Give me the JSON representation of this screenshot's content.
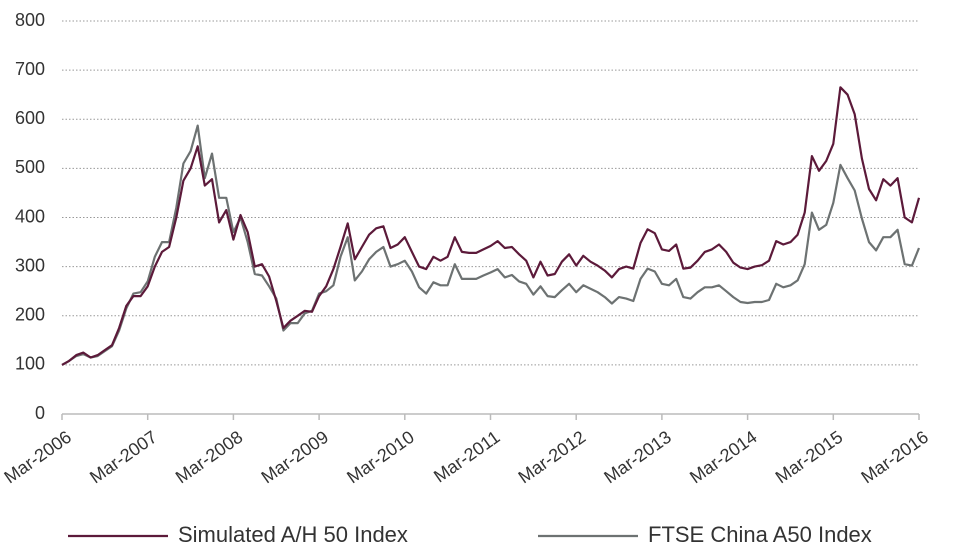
{
  "chart_data": {
    "type": "line",
    "categories": [
      "Mar-2006",
      null,
      null,
      null,
      null,
      null,
      null,
      null,
      null,
      null,
      null,
      null,
      "Mar-2007",
      null,
      null,
      null,
      null,
      null,
      null,
      null,
      null,
      null,
      null,
      null,
      "Mar-2008",
      null,
      null,
      null,
      null,
      null,
      null,
      null,
      null,
      null,
      null,
      null,
      "Mar-2009",
      null,
      null,
      null,
      null,
      null,
      null,
      null,
      null,
      null,
      null,
      null,
      "Mar-2010",
      null,
      null,
      null,
      null,
      null,
      null,
      null,
      null,
      null,
      null,
      null,
      "Mar-2011",
      null,
      null,
      null,
      null,
      null,
      null,
      null,
      null,
      null,
      null,
      null,
      "Mar-2012",
      null,
      null,
      null,
      null,
      null,
      null,
      null,
      null,
      null,
      null,
      null,
      "Mar-2013",
      null,
      null,
      null,
      null,
      null,
      null,
      null,
      null,
      null,
      null,
      null,
      "Mar-2014",
      null,
      null,
      null,
      null,
      null,
      null,
      null,
      null,
      null,
      null,
      null,
      "Mar-2015",
      null,
      null,
      null,
      null,
      null,
      null,
      null,
      null,
      null,
      null,
      null,
      "Mar-2016"
    ],
    "series": [
      {
        "name": "Simulated A/H 50 Index",
        "color": "#5c1a3a",
        "values": [
          100,
          108,
          120,
          125,
          115,
          120,
          130,
          140,
          175,
          220,
          240,
          240,
          260,
          300,
          330,
          340,
          400,
          475,
          500,
          545,
          465,
          478,
          390,
          415,
          355,
          405,
          370,
          300,
          305,
          280,
          230,
          175,
          190,
          200,
          210,
          208,
          240,
          260,
          295,
          340,
          388,
          315,
          340,
          365,
          378,
          382,
          338,
          345,
          360,
          330,
          300,
          295,
          320,
          312,
          320,
          360,
          330,
          328,
          328,
          335,
          342,
          352,
          338,
          340,
          325,
          312,
          278,
          310,
          282,
          285,
          310,
          325,
          302,
          322,
          310,
          302,
          292,
          278,
          295,
          300,
          296,
          348,
          376,
          368,
          335,
          332,
          345,
          296,
          298,
          312,
          330,
          335,
          345,
          330,
          308,
          298,
          295,
          300,
          303,
          312,
          352,
          345,
          350,
          365,
          410,
          525,
          495,
          515,
          550,
          665,
          650,
          610,
          520,
          458,
          435,
          478,
          465,
          480,
          400,
          390,
          440
        ]
      },
      {
        "name": "FTSE China A50 Index",
        "color": "#6d7272",
        "values": [
          100,
          108,
          118,
          122,
          115,
          118,
          128,
          138,
          170,
          215,
          245,
          248,
          270,
          320,
          350,
          350,
          420,
          510,
          535,
          587,
          480,
          530,
          440,
          440,
          370,
          400,
          350,
          285,
          282,
          260,
          235,
          170,
          185,
          185,
          205,
          210,
          245,
          250,
          262,
          320,
          360,
          272,
          290,
          315,
          330,
          340,
          300,
          305,
          312,
          290,
          258,
          245,
          268,
          262,
          262,
          305,
          275,
          275,
          275,
          282,
          288,
          295,
          278,
          283,
          270,
          265,
          243,
          260,
          240,
          238,
          252,
          265,
          248,
          262,
          255,
          248,
          238,
          225,
          238,
          235,
          230,
          275,
          296,
          290,
          265,
          262,
          275,
          238,
          235,
          248,
          258,
          258,
          262,
          250,
          238,
          228,
          226,
          228,
          228,
          232,
          265,
          258,
          262,
          272,
          305,
          410,
          375,
          385,
          430,
          507,
          480,
          455,
          398,
          350,
          333,
          360,
          360,
          375,
          305,
          302,
          338
        ]
      }
    ],
    "ylim": [
      0,
      800
    ],
    "yticks": [
      0,
      100,
      200,
      300,
      400,
      500,
      600,
      700,
      800
    ],
    "grid": true,
    "legend": "bottom"
  }
}
